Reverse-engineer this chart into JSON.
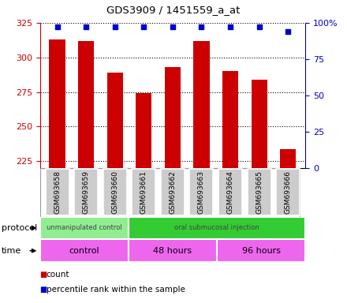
{
  "title": "GDS3909 / 1451559_a_at",
  "samples": [
    "GSM693658",
    "GSM693659",
    "GSM693660",
    "GSM693661",
    "GSM693662",
    "GSM693663",
    "GSM693664",
    "GSM693665",
    "GSM693666"
  ],
  "counts": [
    313,
    312,
    289,
    274,
    293,
    312,
    290,
    284,
    234
  ],
  "percentile_ranks": [
    97,
    97,
    97,
    97,
    97,
    97,
    97,
    97,
    94
  ],
  "ylim_left": [
    220,
    325
  ],
  "ylim_right": [
    0,
    100
  ],
  "yticks_left": [
    225,
    250,
    275,
    300,
    325
  ],
  "yticks_right": [
    0,
    25,
    50,
    75,
    100
  ],
  "bar_color": "#cc0000",
  "dot_color": "#0000cc",
  "left_axis_color": "#cc0000",
  "right_axis_color": "#0000cc",
  "protocol_groups": [
    {
      "label": "unmanipulated control",
      "start": 0,
      "end": 3,
      "color": "#90ee90"
    },
    {
      "label": "oral submucosal injection",
      "start": 3,
      "end": 9,
      "color": "#33cc33"
    }
  ],
  "time_groups": [
    {
      "label": "control",
      "start": 0,
      "end": 3
    },
    {
      "label": "48 hours",
      "start": 3,
      "end": 6
    },
    {
      "label": "96 hours",
      "start": 6,
      "end": 9
    }
  ],
  "time_color": "#ee66ee",
  "legend_count_label": "count",
  "legend_pct_label": "percentile rank within the sample",
  "protocol_label": "protocol",
  "time_label": "time",
  "sample_box_color": "#cccccc",
  "background_color": "#ffffff",
  "grid_color": "#000000",
  "spine_color": "#000000"
}
